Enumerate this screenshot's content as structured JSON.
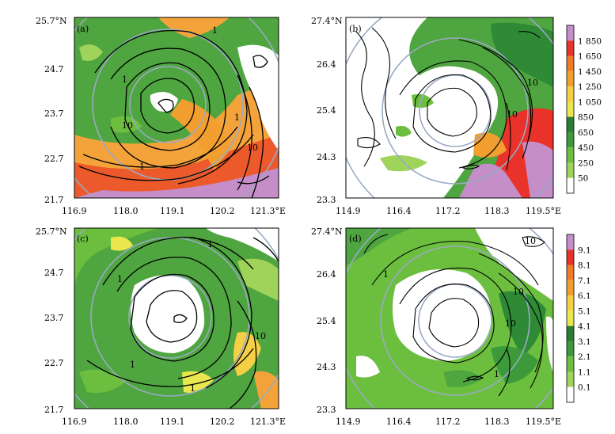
{
  "chart_data": [
    {
      "type": "heatmap",
      "panel_label": "(a)",
      "xticks": [
        "116.9",
        "118.0",
        "119.1",
        "120.2",
        "121.3°E"
      ],
      "yticks": [
        "25.7°N",
        "24.7",
        "23.7",
        "22.7",
        "21.7"
      ],
      "xlim": [
        116.9,
        121.3
      ],
      "ylim": [
        21.7,
        25.7
      ],
      "contour_labels": [
        "1",
        "1",
        "10",
        "1",
        "10",
        "1"
      ],
      "colorbar": "top"
    },
    {
      "type": "heatmap",
      "panel_label": "(b)",
      "xticks": [
        "114.9",
        "116.4",
        "117.2",
        "118.3",
        "119.5°E"
      ],
      "yticks": [
        "27.4°N",
        "26.4",
        "25.4",
        "24.3",
        "23.3"
      ],
      "xlim": [
        114.9,
        119.5
      ],
      "ylim": [
        23.3,
        27.4
      ],
      "contour_labels": [
        "10",
        "10"
      ],
      "colorbar": "top"
    },
    {
      "type": "heatmap",
      "panel_label": "(c)",
      "xticks": [
        "116.9",
        "118.0",
        "119.1",
        "120.2",
        "121.3°E"
      ],
      "yticks": [
        "25.7°N",
        "24.7",
        "23.7",
        "22.7",
        "21.7"
      ],
      "xlim": [
        116.9,
        121.3
      ],
      "ylim": [
        21.7,
        25.7
      ],
      "contour_labels": [
        "1",
        "1",
        "10",
        "1",
        "1"
      ],
      "colorbar": "bottom"
    },
    {
      "type": "heatmap",
      "panel_label": "(d)",
      "xticks": [
        "114.9",
        "116.4",
        "117.2",
        "118.3",
        "119.5°E"
      ],
      "yticks": [
        "27.4°N",
        "26.4",
        "25.4",
        "24.3",
        "23.3"
      ],
      "xlim": [
        114.9,
        119.5
      ],
      "ylim": [
        23.3,
        27.4
      ],
      "contour_labels": [
        "10",
        "1",
        "10",
        "10",
        "1"
      ],
      "colorbar": "bottom"
    }
  ],
  "colorbar_top": {
    "labels": [
      "1 850",
      "1 650",
      "1 450",
      "1 250",
      "1 050",
      "850",
      "650",
      "450",
      "250",
      "50"
    ],
    "colors": [
      "#c58ec8",
      "#e8322a",
      "#f07a2a",
      "#f39f30",
      "#f5cf45",
      "#e9e64e",
      "#2a7d32",
      "#3c9a3a",
      "#6cbf3e",
      "#9fd35a",
      "#ffffff"
    ]
  },
  "colorbar_bottom": {
    "labels": [
      "9.1",
      "8.1",
      "7.1",
      "6.1",
      "5.1",
      "4.1",
      "3.1",
      "2.1",
      "1.1",
      "0.1"
    ],
    "colors": [
      "#c58ec8",
      "#e8322a",
      "#f07a2a",
      "#f39f30",
      "#f5cf45",
      "#e9e64e",
      "#2a7d32",
      "#3c9a3a",
      "#6cbf3e",
      "#9fd35a",
      "#ffffff"
    ]
  }
}
